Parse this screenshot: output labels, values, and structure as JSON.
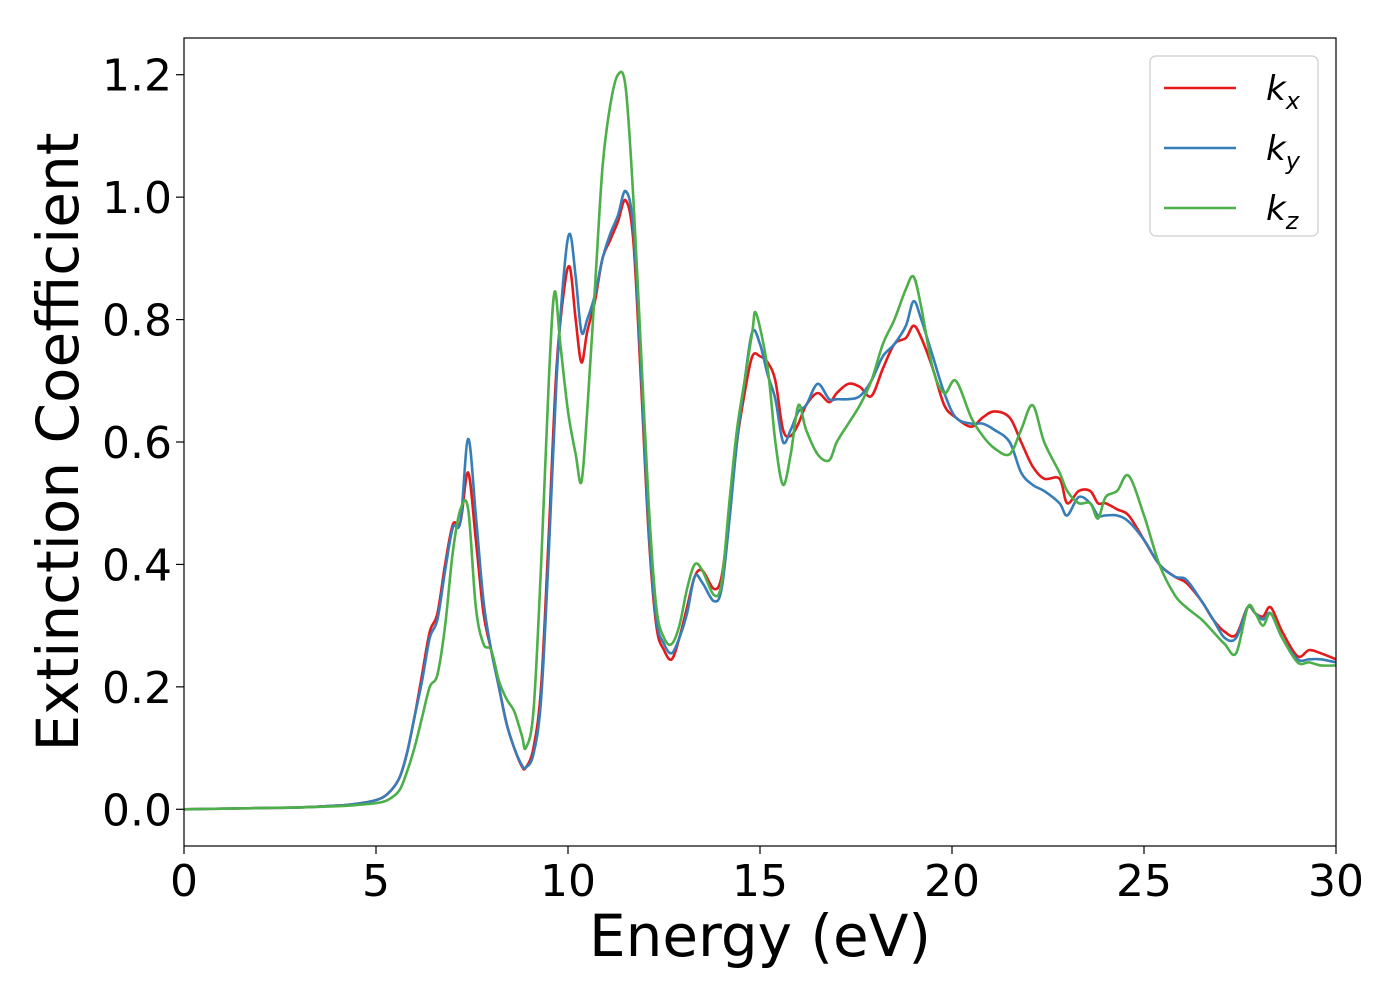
{
  "chart_data": {
    "type": "line",
    "title": "",
    "xlabel": "Energy (eV)",
    "ylabel": "Extinction Coefficient",
    "xlim": [
      0,
      30
    ],
    "ylim": [
      -0.06,
      1.26
    ],
    "xticks": [
      0,
      5,
      10,
      15,
      20,
      25,
      30
    ],
    "xtick_labels": [
      "0",
      "5",
      "10",
      "15",
      "20",
      "25",
      "30"
    ],
    "yticks": [
      0.0,
      0.2,
      0.4,
      0.6,
      0.8,
      1.0,
      1.2
    ],
    "ytick_labels": [
      "0.0",
      "0.2",
      "0.4",
      "0.6",
      "0.8",
      "1.0",
      "1.2"
    ],
    "grid": false,
    "legend_position": "top-right",
    "series": [
      {
        "name": "k",
        "subscript": "x",
        "color": "#e41a1c",
        "x": [
          0,
          1,
          2,
          3,
          4,
          4.5,
          5,
          5.3,
          5.6,
          5.8,
          6.0,
          6.2,
          6.4,
          6.6,
          6.8,
          7.0,
          7.2,
          7.4,
          7.6,
          7.8,
          8.0,
          8.2,
          8.4,
          8.6,
          8.8,
          8.9,
          9.1,
          9.3,
          9.5,
          9.7,
          9.9,
          10.05,
          10.2,
          10.35,
          10.5,
          10.7,
          10.9,
          11.1,
          11.3,
          11.5,
          11.7,
          11.9,
          12.1,
          12.3,
          12.5,
          12.7,
          12.9,
          13.1,
          13.3,
          13.5,
          13.8,
          14.0,
          14.2,
          14.4,
          14.6,
          14.8,
          15.0,
          15.2,
          15.4,
          15.6,
          15.8,
          16.0,
          16.2,
          16.5,
          16.8,
          17.0,
          17.3,
          17.6,
          17.9,
          18.2,
          18.5,
          18.8,
          19.0,
          19.2,
          19.5,
          19.8,
          20.1,
          20.5,
          20.8,
          21.1,
          21.5,
          21.8,
          22.1,
          22.4,
          22.8,
          23.0,
          23.3,
          23.6,
          23.8,
          24.0,
          24.3,
          24.6,
          25.0,
          25.4,
          25.8,
          26.1,
          26.5,
          26.8,
          27.1,
          27.4,
          27.7,
          27.9,
          28.1,
          28.3,
          28.6,
          29.0,
          29.3,
          29.6,
          30.0
        ],
        "y": [
          0.0,
          0.001,
          0.002,
          0.003,
          0.006,
          0.009,
          0.015,
          0.025,
          0.05,
          0.09,
          0.15,
          0.22,
          0.29,
          0.32,
          0.4,
          0.465,
          0.47,
          0.55,
          0.44,
          0.32,
          0.26,
          0.2,
          0.14,
          0.1,
          0.07,
          0.068,
          0.1,
          0.2,
          0.45,
          0.72,
          0.85,
          0.885,
          0.8,
          0.73,
          0.78,
          0.83,
          0.9,
          0.93,
          0.96,
          0.995,
          0.93,
          0.7,
          0.45,
          0.3,
          0.26,
          0.245,
          0.28,
          0.33,
          0.38,
          0.39,
          0.36,
          0.38,
          0.48,
          0.6,
          0.68,
          0.74,
          0.74,
          0.73,
          0.7,
          0.62,
          0.61,
          0.63,
          0.66,
          0.68,
          0.665,
          0.68,
          0.695,
          0.69,
          0.675,
          0.72,
          0.76,
          0.77,
          0.79,
          0.77,
          0.72,
          0.66,
          0.64,
          0.625,
          0.64,
          0.65,
          0.64,
          0.6,
          0.56,
          0.54,
          0.54,
          0.5,
          0.52,
          0.52,
          0.5,
          0.5,
          0.49,
          0.48,
          0.44,
          0.4,
          0.38,
          0.37,
          0.34,
          0.31,
          0.29,
          0.285,
          0.33,
          0.32,
          0.315,
          0.33,
          0.29,
          0.25,
          0.26,
          0.255,
          0.245
        ]
      },
      {
        "name": "k",
        "subscript": "y",
        "color": "#377eb8",
        "x": [
          0,
          1,
          2,
          3,
          4,
          4.5,
          5,
          5.3,
          5.6,
          5.8,
          6.0,
          6.2,
          6.4,
          6.6,
          6.8,
          7.0,
          7.2,
          7.4,
          7.6,
          7.8,
          8.0,
          8.2,
          8.4,
          8.6,
          8.8,
          8.9,
          9.1,
          9.3,
          9.5,
          9.7,
          9.9,
          10.05,
          10.2,
          10.35,
          10.5,
          10.7,
          10.9,
          11.1,
          11.3,
          11.5,
          11.7,
          11.9,
          12.1,
          12.3,
          12.5,
          12.7,
          12.9,
          13.1,
          13.3,
          13.5,
          13.8,
          14.0,
          14.2,
          14.4,
          14.6,
          14.8,
          15.0,
          15.2,
          15.4,
          15.6,
          15.8,
          16.0,
          16.2,
          16.5,
          16.8,
          17.0,
          17.3,
          17.6,
          17.9,
          18.2,
          18.5,
          18.8,
          19.0,
          19.2,
          19.5,
          19.8,
          20.1,
          20.5,
          20.8,
          21.1,
          21.5,
          21.8,
          22.1,
          22.4,
          22.8,
          23.0,
          23.3,
          23.6,
          23.8,
          24.0,
          24.3,
          24.6,
          25.0,
          25.4,
          25.8,
          26.1,
          26.5,
          26.8,
          27.1,
          27.4,
          27.7,
          27.9,
          28.1,
          28.3,
          28.6,
          29.0,
          29.3,
          29.6,
          30.0
        ],
        "y": [
          0.0,
          0.001,
          0.002,
          0.003,
          0.006,
          0.009,
          0.015,
          0.025,
          0.05,
          0.09,
          0.15,
          0.21,
          0.28,
          0.31,
          0.39,
          0.46,
          0.47,
          0.605,
          0.48,
          0.34,
          0.26,
          0.2,
          0.14,
          0.1,
          0.072,
          0.068,
          0.09,
          0.18,
          0.42,
          0.7,
          0.88,
          0.94,
          0.87,
          0.78,
          0.8,
          0.84,
          0.9,
          0.94,
          0.97,
          1.01,
          0.95,
          0.72,
          0.46,
          0.31,
          0.27,
          0.255,
          0.28,
          0.32,
          0.38,
          0.37,
          0.34,
          0.36,
          0.47,
          0.6,
          0.7,
          0.78,
          0.76,
          0.71,
          0.67,
          0.6,
          0.62,
          0.65,
          0.66,
          0.695,
          0.67,
          0.67,
          0.67,
          0.675,
          0.7,
          0.74,
          0.76,
          0.79,
          0.83,
          0.8,
          0.74,
          0.68,
          0.64,
          0.63,
          0.63,
          0.62,
          0.6,
          0.55,
          0.53,
          0.52,
          0.5,
          0.48,
          0.51,
          0.5,
          0.48,
          0.48,
          0.48,
          0.47,
          0.44,
          0.4,
          0.38,
          0.375,
          0.34,
          0.31,
          0.28,
          0.28,
          0.33,
          0.32,
          0.31,
          0.32,
          0.28,
          0.245,
          0.245,
          0.245,
          0.24
        ]
      },
      {
        "name": "k",
        "subscript": "z",
        "color": "#4daf4a",
        "x": [
          0,
          1,
          2,
          3,
          4,
          4.5,
          5,
          5.3,
          5.6,
          5.8,
          6.0,
          6.2,
          6.4,
          6.6,
          6.8,
          7.0,
          7.2,
          7.4,
          7.6,
          7.8,
          8.0,
          8.2,
          8.4,
          8.6,
          8.8,
          8.9,
          9.1,
          9.3,
          9.5,
          9.65,
          9.8,
          10.0,
          10.2,
          10.35,
          10.5,
          10.7,
          10.9,
          11.1,
          11.3,
          11.5,
          11.7,
          11.9,
          12.1,
          12.3,
          12.5,
          12.7,
          12.9,
          13.1,
          13.3,
          13.5,
          13.8,
          14.0,
          14.2,
          14.4,
          14.6,
          14.8,
          14.9,
          15.2,
          15.4,
          15.6,
          15.8,
          16.0,
          16.2,
          16.5,
          16.8,
          17.0,
          17.3,
          17.6,
          17.9,
          18.2,
          18.5,
          18.8,
          19.0,
          19.2,
          19.5,
          19.8,
          20.1,
          20.5,
          20.8,
          21.1,
          21.5,
          21.8,
          22.1,
          22.4,
          22.8,
          23.0,
          23.3,
          23.6,
          23.8,
          24.0,
          24.3,
          24.6,
          25.0,
          25.4,
          25.8,
          26.1,
          26.5,
          26.8,
          27.1,
          27.4,
          27.7,
          27.9,
          28.1,
          28.3,
          28.6,
          29.0,
          29.3,
          29.6,
          30.0
        ],
        "y": [
          0.0,
          0.001,
          0.002,
          0.003,
          0.005,
          0.007,
          0.01,
          0.015,
          0.03,
          0.06,
          0.1,
          0.15,
          0.2,
          0.22,
          0.3,
          0.42,
          0.49,
          0.49,
          0.33,
          0.27,
          0.26,
          0.21,
          0.18,
          0.16,
          0.12,
          0.1,
          0.16,
          0.4,
          0.7,
          0.845,
          0.76,
          0.65,
          0.58,
          0.535,
          0.65,
          0.85,
          1.05,
          1.15,
          1.2,
          1.18,
          1.0,
          0.75,
          0.5,
          0.33,
          0.28,
          0.27,
          0.3,
          0.36,
          0.4,
          0.39,
          0.35,
          0.37,
          0.5,
          0.62,
          0.7,
          0.78,
          0.81,
          0.72,
          0.6,
          0.53,
          0.58,
          0.66,
          0.62,
          0.58,
          0.57,
          0.6,
          0.63,
          0.66,
          0.7,
          0.76,
          0.8,
          0.85,
          0.87,
          0.82,
          0.72,
          0.68,
          0.7,
          0.64,
          0.61,
          0.59,
          0.58,
          0.62,
          0.66,
          0.6,
          0.55,
          0.52,
          0.5,
          0.5,
          0.475,
          0.51,
          0.52,
          0.545,
          0.48,
          0.4,
          0.35,
          0.33,
          0.31,
          0.29,
          0.27,
          0.255,
          0.33,
          0.32,
          0.3,
          0.32,
          0.28,
          0.24,
          0.24,
          0.235,
          0.235
        ]
      }
    ]
  }
}
